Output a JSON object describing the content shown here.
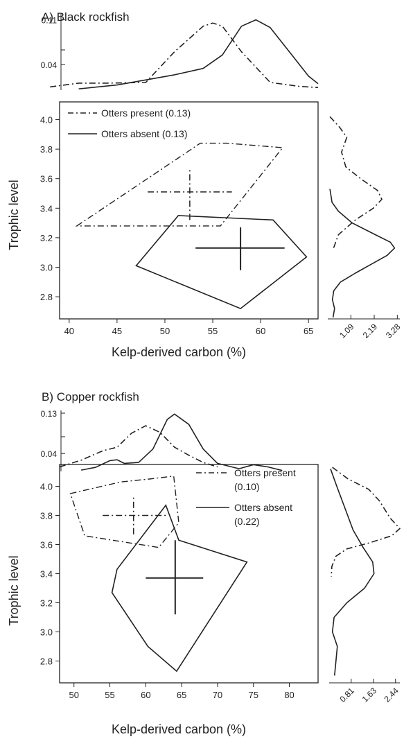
{
  "chart_data": [
    {
      "type": "scatter",
      "panel_title": "A) Black rockfish",
      "xlabel": "Kelp-derived carbon (%)",
      "ylabel": "Trophic level",
      "xlim": [
        39,
        66
      ],
      "ylim": [
        2.65,
        4.12
      ],
      "x_ticks": [
        40,
        45,
        50,
        55,
        60,
        65
      ],
      "y_ticks": [
        "2.8",
        "3.0",
        "3.2",
        "3.4",
        "3.6",
        "3.8",
        "4.0"
      ],
      "legend_position": "top-left",
      "series": [
        {
          "name": "Otters present (0.13)",
          "style": "dashdot",
          "hull": [
            [
              40.8,
              3.28
            ],
            [
              53.7,
              3.84
            ],
            [
              56.5,
              3.84
            ],
            [
              62.3,
              3.81
            ],
            [
              55.8,
              3.28
            ]
          ],
          "centroid": [
            52.6,
            3.51
          ],
          "cross_x": [
            48.2,
            57.0
          ],
          "cross_y": [
            3.32,
            3.66
          ]
        },
        {
          "name": "Otters absent (0.13)",
          "style": "solid",
          "hull": [
            [
              47.0,
              3.01
            ],
            [
              51.4,
              3.35
            ],
            [
              61.3,
              3.32
            ],
            [
              64.8,
              3.07
            ],
            [
              57.9,
              2.72
            ]
          ],
          "centroid": [
            57.9,
            3.13
          ],
          "cross_x": [
            53.2,
            62.5
          ],
          "cross_y": [
            2.98,
            3.27
          ]
        }
      ],
      "top_density": {
        "x_ticks": [
          "0.04",
          "0.11"
        ],
        "ylim": [
          0,
          0.115
        ],
        "present": [
          [
            38,
            0.005
          ],
          [
            41,
            0.011
          ],
          [
            44,
            0.011
          ],
          [
            48,
            0.012
          ],
          [
            51,
            0.06
          ],
          [
            54,
            0.1
          ],
          [
            55,
            0.105
          ],
          [
            56,
            0.1
          ],
          [
            58,
            0.06
          ],
          [
            61,
            0.012
          ],
          [
            64,
            0.006
          ],
          [
            66,
            0.004
          ]
        ],
        "absent": [
          [
            41,
            0.002
          ],
          [
            45,
            0.008
          ],
          [
            48,
            0.016
          ],
          [
            51,
            0.024
          ],
          [
            54,
            0.034
          ],
          [
            56,
            0.055
          ],
          [
            58,
            0.1
          ],
          [
            59.5,
            0.11
          ],
          [
            61,
            0.098
          ],
          [
            63,
            0.06
          ],
          [
            65,
            0.022
          ],
          [
            66,
            0.01
          ]
        ]
      },
      "right_density": {
        "x_ticks": [
          "1.09",
          "2.19",
          "3.28"
        ],
        "xlim": [
          0,
          3.4
        ],
        "present": [
          [
            4.02,
            0.1
          ],
          [
            3.95,
            0.55
          ],
          [
            3.88,
            0.9
          ],
          [
            3.78,
            0.65
          ],
          [
            3.68,
            0.85
          ],
          [
            3.6,
            1.55
          ],
          [
            3.52,
            2.35
          ],
          [
            3.46,
            2.55
          ],
          [
            3.4,
            2.15
          ],
          [
            3.32,
            1.3
          ],
          [
            3.22,
            0.5
          ],
          [
            3.12,
            0.25
          ]
        ],
        "absent": [
          [
            3.53,
            0.1
          ],
          [
            3.44,
            0.2
          ],
          [
            3.38,
            0.5
          ],
          [
            3.3,
            1.15
          ],
          [
            3.22,
            2.25
          ],
          [
            3.17,
            2.95
          ],
          [
            3.13,
            3.15
          ],
          [
            3.08,
            2.8
          ],
          [
            3.02,
            2.05
          ],
          [
            2.96,
            1.3
          ],
          [
            2.9,
            0.6
          ],
          [
            2.84,
            0.28
          ],
          [
            2.78,
            0.22
          ],
          [
            2.72,
            0.32
          ],
          [
            2.66,
            0.25
          ]
        ]
      }
    },
    {
      "type": "scatter",
      "panel_title": "B) Copper rockfish",
      "xlabel": "Kelp-derived carbon (%)",
      "ylabel": "Trophic level",
      "xlim": [
        48,
        84
      ],
      "ylim": [
        2.65,
        4.15
      ],
      "x_ticks": [
        50,
        55,
        60,
        65,
        70,
        75,
        80
      ],
      "y_ticks": [
        "2.8",
        "3.0",
        "3.2",
        "3.4",
        "3.6",
        "3.8",
        "4.0"
      ],
      "legend_position": "top-right",
      "series": [
        {
          "name": "Otters present",
          "name_line2": "(0.10)",
          "style": "dashdot",
          "hull": [
            [
              49.5,
              3.95
            ],
            [
              56.5,
              4.03
            ],
            [
              60.5,
              4.05
            ],
            [
              63.9,
              4.07
            ],
            [
              64.6,
              3.75
            ],
            [
              61.8,
              3.58
            ],
            [
              51.5,
              3.66
            ]
          ],
          "centroid": [
            58.3,
            3.8
          ],
          "cross_x": [
            54.0,
            63.0
          ],
          "cross_y": [
            3.67,
            3.93
          ]
        },
        {
          "name": "Otters absent",
          "name_line2": "(0.22)",
          "style": "solid",
          "hull": [
            [
              55.3,
              3.27
            ],
            [
              56.0,
              3.43
            ],
            [
              62.8,
              3.87
            ],
            [
              64.6,
              3.63
            ],
            [
              74.1,
              3.48
            ],
            [
              64.3,
              2.73
            ],
            [
              60.3,
              2.9
            ]
          ],
          "centroid": [
            64.1,
            3.37
          ],
          "cross_x": [
            60.0,
            68.0
          ],
          "cross_y": [
            3.12,
            3.63
          ]
        }
      ],
      "top_density": {
        "x_ticks": [
          "0.04",
          "0.13"
        ],
        "ylim": [
          0,
          0.13
        ],
        "present": [
          [
            48,
            0.01
          ],
          [
            51,
            0.025
          ],
          [
            54,
            0.046
          ],
          [
            56,
            0.054
          ],
          [
            58,
            0.085
          ],
          [
            60,
            0.102
          ],
          [
            62,
            0.087
          ],
          [
            64,
            0.054
          ],
          [
            66,
            0.036
          ],
          [
            68,
            0.02
          ],
          [
            70,
            0.01
          ]
        ],
        "absent": [
          [
            51,
            0.003
          ],
          [
            53,
            0.009
          ],
          [
            55,
            0.024
          ],
          [
            56,
            0.026
          ],
          [
            57,
            0.018
          ],
          [
            59,
            0.02
          ],
          [
            61,
            0.05
          ],
          [
            63,
            0.116
          ],
          [
            64,
            0.128
          ],
          [
            66,
            0.105
          ],
          [
            68,
            0.05
          ],
          [
            70,
            0.018
          ],
          [
            73,
            0.006
          ],
          [
            75,
            0.015
          ],
          [
            77,
            0.01
          ],
          [
            79,
            0.002
          ]
        ]
      },
      "right_density": {
        "x_ticks": [
          "0.81",
          "1.63",
          "2.44"
        ],
        "xlim": [
          0,
          2.6
        ],
        "present": [
          [
            4.13,
            0.12
          ],
          [
            4.05,
            0.7
          ],
          [
            3.98,
            1.45
          ],
          [
            3.9,
            1.85
          ],
          [
            3.84,
            2.05
          ],
          [
            3.78,
            2.25
          ],
          [
            3.71,
            2.6
          ],
          [
            3.66,
            2.3
          ],
          [
            3.61,
            1.45
          ],
          [
            3.57,
            0.65
          ],
          [
            3.52,
            0.25
          ],
          [
            3.45,
            0.1
          ],
          [
            3.38,
            0.08
          ]
        ],
        "absent": [
          [
            4.12,
            0.05
          ],
          [
            4.0,
            0.28
          ],
          [
            3.85,
            0.58
          ],
          [
            3.7,
            0.88
          ],
          [
            3.58,
            1.25
          ],
          [
            3.48,
            1.6
          ],
          [
            3.4,
            1.65
          ],
          [
            3.3,
            1.3
          ],
          [
            3.2,
            0.65
          ],
          [
            3.1,
            0.18
          ],
          [
            3.0,
            0.12
          ],
          [
            2.9,
            0.3
          ],
          [
            2.8,
            0.25
          ],
          [
            2.7,
            0.2
          ]
        ]
      }
    }
  ]
}
